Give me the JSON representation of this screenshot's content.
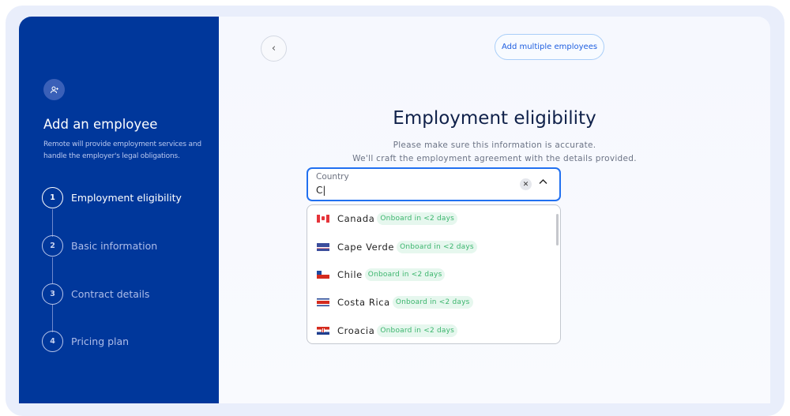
{
  "sidebar": {
    "icon": "user-plus-icon",
    "title": "Add an employee",
    "description": "Remote will provide employment services and handle the employer's legal obligations.",
    "steps": [
      {
        "num": "1",
        "label": "Employment eligibility"
      },
      {
        "num": "2",
        "label": "Basic information"
      },
      {
        "num": "3",
        "label": "Contract details"
      },
      {
        "num": "4",
        "label": "Pricing plan"
      }
    ]
  },
  "main": {
    "back_icon": "chevron-left-icon",
    "add_multiple": "Add multiple employees",
    "title": "Employment eligibility",
    "subtitle_line1": "Please make sure this information is accurate.",
    "subtitle_line2": "We'll craft the employment agreement with the details provided.",
    "country_field": {
      "label": "Country",
      "value": "C|"
    },
    "options": [
      {
        "name": "Canada",
        "badge": "Onboard in <2 days"
      },
      {
        "name": "Cape Verde",
        "badge": "Onboard in <2 days"
      },
      {
        "name": "Chile",
        "badge": "Onboard in <2 days"
      },
      {
        "name": "Costa Rica",
        "badge": "Onboard in <2 days"
      },
      {
        "name": "Croacia",
        "badge": "Onboard in <2 days"
      }
    ]
  },
  "colors": {
    "sidebar": "#00379b",
    "accent": "#2170f0",
    "badge_text": "#3bb56d"
  }
}
